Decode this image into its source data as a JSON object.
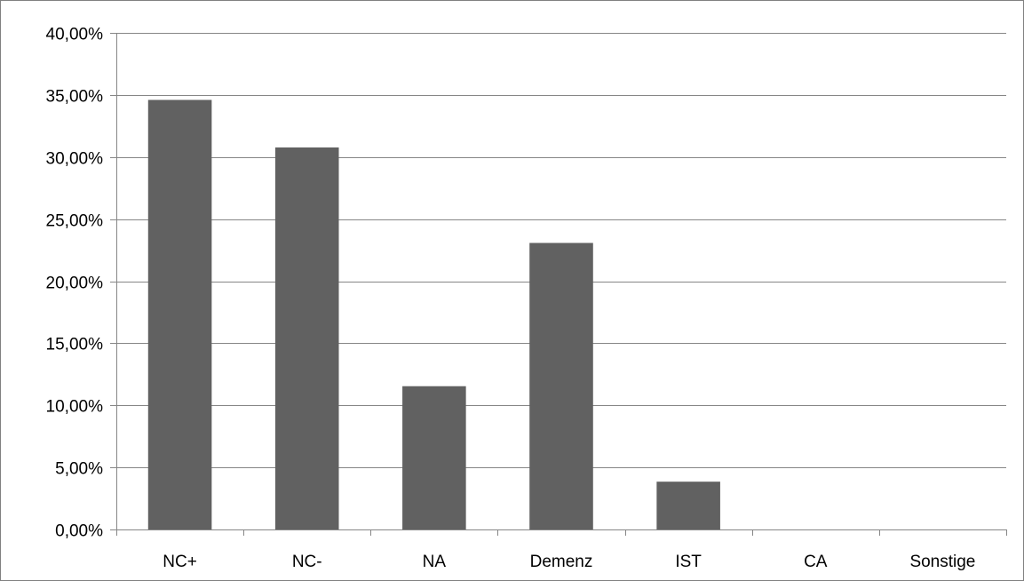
{
  "chart_data": {
    "type": "bar",
    "title": "",
    "xlabel": "",
    "ylabel": "",
    "categories": [
      "NC+",
      "NC-",
      "NA",
      "Demenz",
      "IST",
      "CA",
      "Sonstige"
    ],
    "values": [
      34.6,
      30.77,
      11.54,
      23.08,
      3.85,
      0,
      0
    ],
    "ylim": [
      0,
      40
    ],
    "yticks": [
      0,
      5,
      10,
      15,
      20,
      25,
      30,
      35,
      40
    ],
    "ytick_labels": [
      "0,00%",
      "5,00%",
      "10,00%",
      "15,00%",
      "20,00%",
      "25,00%",
      "30,00%",
      "35,00%",
      "40,00%"
    ],
    "grid": true,
    "legend": "none",
    "bar_color": "#616161",
    "grid_color": "#868686"
  }
}
